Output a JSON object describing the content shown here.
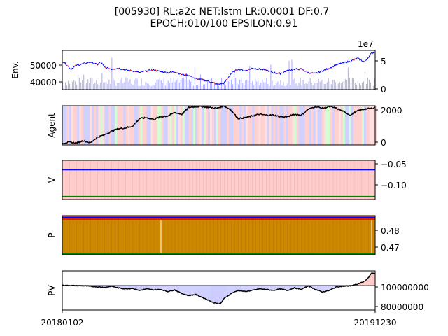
{
  "title_line1": "[005930] RL:a2c NET:lstm LR:0.0001 DF:0.7",
  "title_line2": "EPOCH:010/100 EPSILON:0.91",
  "x_ticks": [
    "20180102",
    "20191230"
  ],
  "chart_data": [
    {
      "type": "line",
      "ylabel": "Env.",
      "left_ticks": [
        "40000",
        "50000"
      ],
      "left_range": [
        35000,
        57000
      ],
      "right_ticks": [
        "0",
        "5"
      ],
      "right_offset_label": "1e7",
      "right_range": [
        0,
        7.0
      ],
      "price_points": [
        [
          0,
          51000
        ],
        [
          5,
          49500
        ],
        [
          12,
          46500
        ],
        [
          20,
          48500
        ],
        [
          30,
          49500
        ],
        [
          40,
          50500
        ],
        [
          50,
          49000
        ],
        [
          55,
          50500
        ],
        [
          60,
          47500
        ],
        [
          70,
          46500
        ],
        [
          80,
          47000
        ],
        [
          90,
          46000
        ],
        [
          100,
          45500
        ],
        [
          110,
          44500
        ],
        [
          120,
          45500
        ],
        [
          130,
          46000
        ],
        [
          140,
          45000
        ],
        [
          150,
          44500
        ],
        [
          160,
          45000
        ],
        [
          170,
          43500
        ],
        [
          180,
          43000
        ],
        [
          190,
          41000
        ],
        [
          200,
          40500
        ],
        [
          210,
          39500
        ],
        [
          220,
          38000
        ],
        [
          230,
          38500
        ],
        [
          240,
          44000
        ],
        [
          250,
          46500
        ],
        [
          260,
          45500
        ],
        [
          270,
          47000
        ],
        [
          280,
          46500
        ],
        [
          290,
          46000
        ],
        [
          300,
          44500
        ],
        [
          310,
          44000
        ],
        [
          320,
          45500
        ],
        [
          330,
          46500
        ],
        [
          340,
          46500
        ],
        [
          350,
          44500
        ],
        [
          360,
          44000
        ],
        [
          370,
          45500
        ],
        [
          380,
          47000
        ],
        [
          390,
          49000
        ],
        [
          400,
          50000
        ],
        [
          410,
          51000
        ],
        [
          420,
          52500
        ],
        [
          430,
          50500
        ],
        [
          440,
          55500
        ],
        [
          445,
          56000
        ]
      ],
      "volume_scale": "millions",
      "color_buy": "#ff0000",
      "color_sell": "#0000ff",
      "volume_color": "#b0b0ff"
    },
    {
      "type": "line",
      "ylabel": "Agent",
      "left_ticks": [],
      "right_ticks": [
        "0",
        "2000"
      ],
      "right_range": [
        -100,
        2200
      ],
      "points": [
        [
          0,
          0
        ],
        [
          10,
          60
        ],
        [
          20,
          20
        ],
        [
          30,
          150
        ],
        [
          40,
          30
        ],
        [
          50,
          350
        ],
        [
          60,
          500
        ],
        [
          70,
          700
        ],
        [
          80,
          850
        ],
        [
          90,
          900
        ],
        [
          100,
          1000
        ],
        [
          110,
          1450
        ],
        [
          120,
          1500
        ],
        [
          130,
          1400
        ],
        [
          140,
          1550
        ],
        [
          150,
          1600
        ],
        [
          160,
          1800
        ],
        [
          170,
          1700
        ],
        [
          180,
          2100
        ],
        [
          190,
          2150
        ],
        [
          200,
          2150
        ],
        [
          210,
          2100
        ],
        [
          220,
          2050
        ],
        [
          230,
          2200
        ],
        [
          240,
          1950
        ],
        [
          250,
          1450
        ],
        [
          260,
          1500
        ],
        [
          270,
          1600
        ],
        [
          280,
          1700
        ],
        [
          290,
          1650
        ],
        [
          300,
          1650
        ],
        [
          310,
          1550
        ],
        [
          320,
          1550
        ],
        [
          330,
          1700
        ],
        [
          340,
          1650
        ],
        [
          350,
          2000
        ],
        [
          360,
          2150
        ],
        [
          370,
          2050
        ],
        [
          380,
          2150
        ],
        [
          390,
          2050
        ],
        [
          400,
          1850
        ],
        [
          410,
          1650
        ],
        [
          420,
          1900
        ],
        [
          430,
          2000
        ],
        [
          440,
          2050
        ],
        [
          445,
          2100
        ]
      ],
      "line_color": "#000000"
    },
    {
      "type": "line",
      "ylabel": "V",
      "left_ticks": [],
      "right_ticks": [
        "−0.05",
        "−0.10"
      ],
      "right_range": [
        -0.135,
        -0.04
      ],
      "series": [
        {
          "value": -0.0625,
          "color": "#0000ff"
        },
        {
          "value": -0.128,
          "color": "#008000"
        }
      ],
      "background": "#ffcccc"
    },
    {
      "type": "line",
      "ylabel": "P",
      "left_ticks": [],
      "right_ticks": [
        "0.48",
        "0.47"
      ],
      "right_range": [
        0.4665,
        0.4855
      ],
      "series": [
        {
          "value": 0.4845,
          "color": "#0000ff"
        },
        {
          "value": 0.467,
          "color": "#008000"
        }
      ],
      "background": "#cc8800"
    },
    {
      "type": "area",
      "ylabel": "PV",
      "left_ticks": [],
      "right_ticks": [
        "100000000",
        "80000000"
      ],
      "right_range": [
        76000000,
        114000000
      ],
      "base": 100000000,
      "points": [
        [
          0,
          100000000
        ],
        [
          30,
          99500000
        ],
        [
          60,
          98000000
        ],
        [
          70,
          99000000
        ],
        [
          80,
          97500000
        ],
        [
          90,
          96500000
        ],
        [
          100,
          97000000
        ],
        [
          110,
          95000000
        ],
        [
          120,
          96500000
        ],
        [
          130,
          95500000
        ],
        [
          140,
          96000000
        ],
        [
          150,
          94000000
        ],
        [
          160,
          95500000
        ],
        [
          170,
          92000000
        ],
        [
          180,
          90000000
        ],
        [
          190,
          91000000
        ],
        [
          200,
          88000000
        ],
        [
          210,
          85000000
        ],
        [
          215,
          83000000
        ],
        [
          225,
          82000000
        ],
        [
          230,
          87000000
        ],
        [
          240,
          92000000
        ],
        [
          250,
          95000000
        ],
        [
          260,
          94000000
        ],
        [
          270,
          95000000
        ],
        [
          280,
          96500000
        ],
        [
          290,
          96000000
        ],
        [
          300,
          95000000
        ],
        [
          310,
          96500000
        ],
        [
          320,
          95000000
        ],
        [
          330,
          97500000
        ],
        [
          340,
          96000000
        ],
        [
          350,
          99500000
        ],
        [
          360,
          96000000
        ],
        [
          370,
          93500000
        ],
        [
          380,
          95000000
        ],
        [
          390,
          98500000
        ],
        [
          400,
          99000000
        ],
        [
          410,
          99500000
        ],
        [
          420,
          101000000
        ],
        [
          430,
          104000000
        ],
        [
          435,
          107000000
        ],
        [
          440,
          112000000
        ],
        [
          445,
          111000000
        ]
      ],
      "loss_fill": "#ccccff",
      "gain_fill": "#ffcccc"
    }
  ]
}
